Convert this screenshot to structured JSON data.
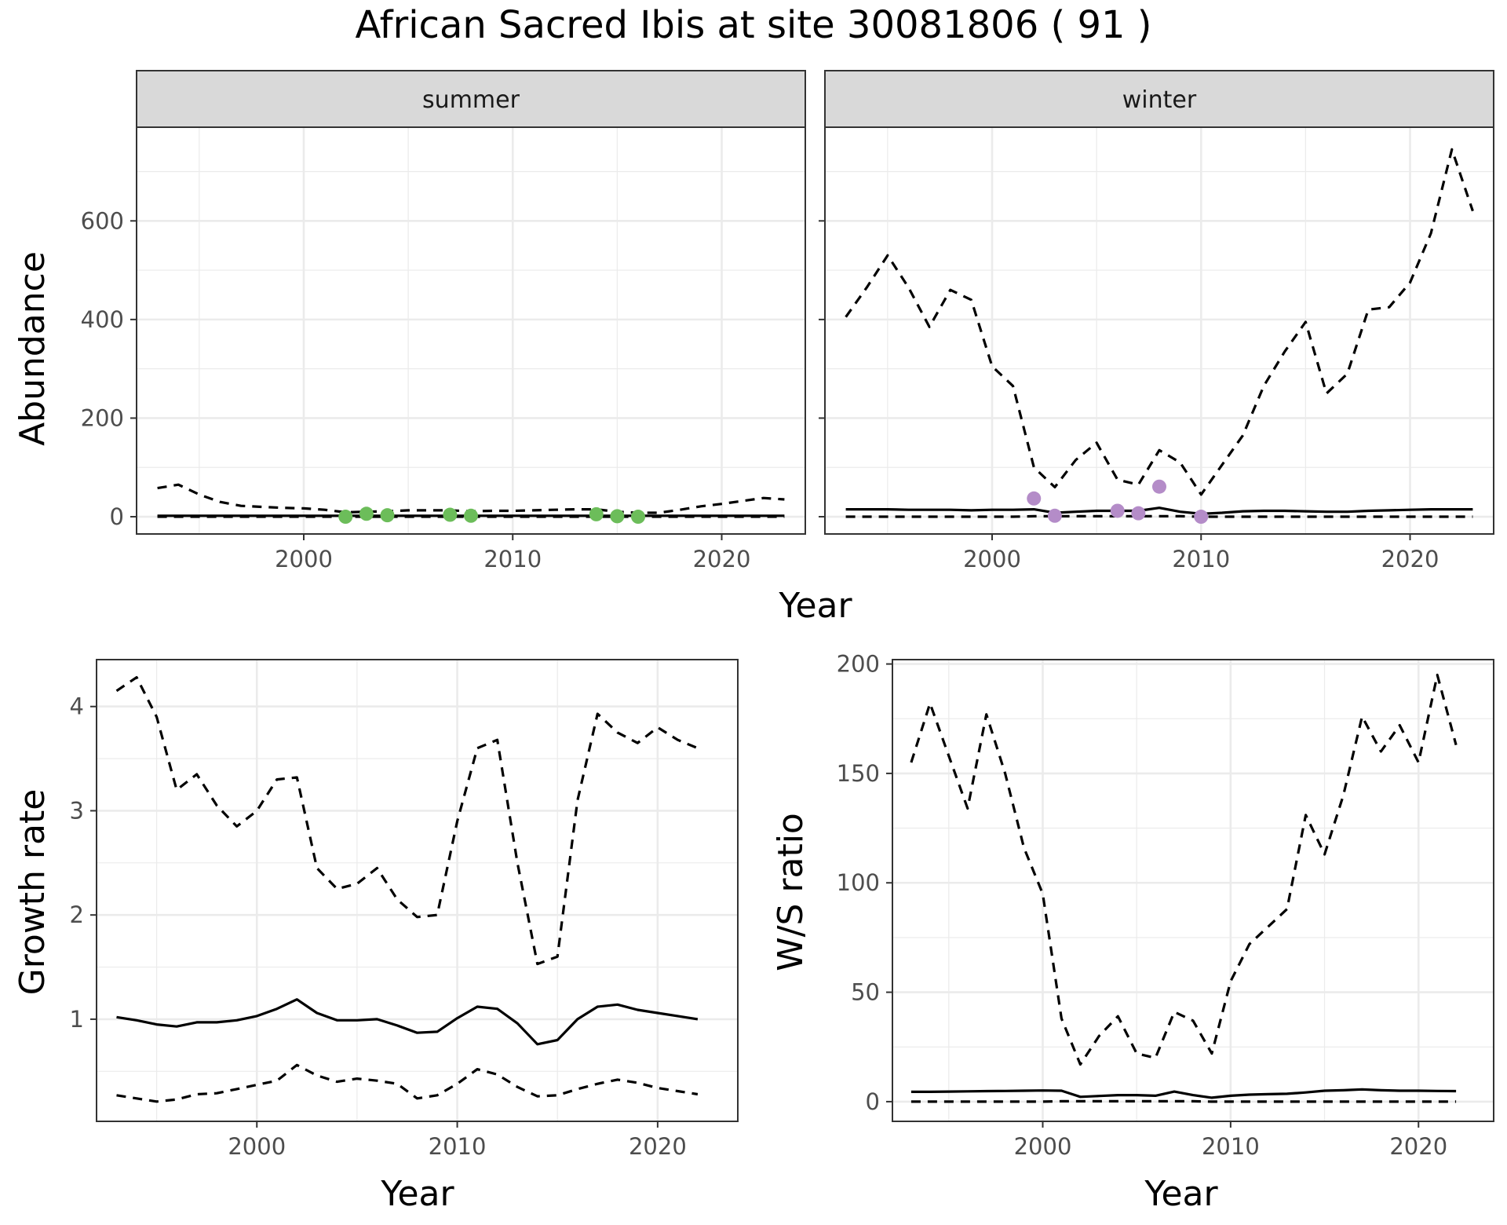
{
  "title": "African Sacred Ibis at site 30081806 ( 91 )",
  "colors": {
    "summer_points": "#6cbd5a",
    "winter_points": "#b48cc8",
    "line": "#000000",
    "strip_bg": "#d9d9d9",
    "grid": "#ebebeb"
  },
  "chart_data": [
    {
      "type": "line",
      "facet": "summer",
      "xlabel": "Year",
      "ylabel": "Abundance",
      "xlim": [
        1992,
        2024
      ],
      "ylim": [
        -35,
        790
      ],
      "xticks": [
        2000,
        2010,
        2020
      ],
      "yticks": [
        0,
        200,
        400,
        600
      ],
      "grid": true,
      "series": [
        {
          "style": "dashed",
          "x": [
            1993,
            1994,
            1995,
            1996,
            1997,
            1998,
            1999,
            2000,
            2001,
            2002,
            2003,
            2004,
            2005,
            2006,
            2007,
            2008,
            2009,
            2010,
            2011,
            2012,
            2013,
            2014,
            2015,
            2016,
            2017,
            2018,
            2019,
            2020,
            2021,
            2022,
            2023
          ],
          "values": [
            58,
            65,
            45,
            30,
            22,
            20,
            18,
            17,
            14,
            9,
            10,
            11,
            13,
            13,
            13,
            11,
            12,
            12,
            13,
            14,
            15,
            15,
            10,
            8,
            8,
            14,
            21,
            26,
            32,
            38,
            35
          ]
        },
        {
          "style": "solid",
          "x": [
            1993,
            1994,
            1995,
            1996,
            1997,
            1998,
            1999,
            2000,
            2001,
            2002,
            2003,
            2004,
            2005,
            2006,
            2007,
            2008,
            2009,
            2010,
            2011,
            2012,
            2013,
            2014,
            2015,
            2016,
            2017,
            2018,
            2019,
            2020,
            2021,
            2022,
            2023
          ],
          "values": [
            2,
            2,
            2,
            2,
            2,
            2,
            2,
            2,
            2,
            2,
            2,
            2,
            2,
            2,
            2,
            2,
            2,
            2,
            2,
            2,
            2,
            2,
            2,
            2,
            2,
            2,
            2,
            2,
            2,
            2,
            2
          ]
        },
        {
          "style": "dashed",
          "x": [
            1993,
            1994,
            1995,
            1996,
            1997,
            1998,
            1999,
            2000,
            2001,
            2002,
            2003,
            2004,
            2005,
            2006,
            2007,
            2008,
            2009,
            2010,
            2011,
            2012,
            2013,
            2014,
            2015,
            2016,
            2017,
            2018,
            2019,
            2020,
            2021,
            2022,
            2023
          ],
          "values": [
            0,
            0,
            0,
            0,
            0,
            0,
            0,
            0,
            0,
            0,
            0,
            0,
            0,
            0,
            0,
            0,
            0,
            0,
            0,
            0,
            0,
            0,
            0,
            0,
            0,
            0,
            0,
            0,
            0,
            0,
            0
          ]
        }
      ],
      "points": {
        "x": [
          2002,
          2003,
          2004,
          2007,
          2008,
          2014,
          2015,
          2016
        ],
        "values": [
          0,
          6,
          3,
          4,
          2,
          5,
          1,
          0
        ]
      }
    },
    {
      "type": "line",
      "facet": "winter",
      "xlabel": "Year",
      "ylabel": "Abundance",
      "xlim": [
        1992,
        2024
      ],
      "ylim": [
        -35,
        790
      ],
      "xticks": [
        2000,
        2010,
        2020
      ],
      "yticks": [
        0,
        200,
        400,
        600
      ],
      "grid": true,
      "series": [
        {
          "style": "dashed",
          "x": [
            1993,
            1994,
            1995,
            1996,
            1997,
            1998,
            1999,
            2000,
            2001,
            2002,
            2003,
            2004,
            2005,
            2006,
            2007,
            2008,
            2009,
            2010,
            2011,
            2012,
            2013,
            2014,
            2015,
            2016,
            2017,
            2018,
            2019,
            2020,
            2021,
            2022,
            2023
          ],
          "values": [
            405,
            465,
            530,
            465,
            385,
            460,
            440,
            305,
            265,
            100,
            60,
            115,
            150,
            75,
            65,
            135,
            110,
            45,
            105,
            165,
            265,
            335,
            395,
            250,
            290,
            420,
            425,
            475,
            575,
            745,
            620
          ]
        },
        {
          "style": "solid",
          "x": [
            1993,
            1994,
            1995,
            1996,
            1997,
            1998,
            1999,
            2000,
            2001,
            2002,
            2003,
            2004,
            2005,
            2006,
            2007,
            2008,
            2009,
            2010,
            2011,
            2012,
            2013,
            2014,
            2015,
            2016,
            2017,
            2018,
            2019,
            2020,
            2021,
            2022,
            2023
          ],
          "values": [
            15,
            15,
            15,
            14,
            14,
            14,
            13,
            14,
            14,
            15,
            8,
            10,
            12,
            12,
            12,
            18,
            10,
            6,
            8,
            11,
            12,
            12,
            11,
            10,
            10,
            12,
            13,
            14,
            15,
            15,
            15
          ]
        },
        {
          "style": "dashed",
          "x": [
            1993,
            1994,
            1995,
            1996,
            1997,
            1998,
            1999,
            2000,
            2001,
            2002,
            2003,
            2004,
            2005,
            2006,
            2007,
            2008,
            2009,
            2010,
            2011,
            2012,
            2013,
            2014,
            2015,
            2016,
            2017,
            2018,
            2019,
            2020,
            2021,
            2022,
            2023
          ],
          "values": [
            0,
            0,
            0,
            0,
            0,
            0,
            0,
            0,
            0,
            1,
            1,
            1,
            1,
            1,
            1,
            1,
            1,
            0,
            0,
            0,
            0,
            0,
            0,
            0,
            0,
            0,
            0,
            0,
            0,
            0,
            0
          ]
        }
      ],
      "points": {
        "x": [
          2002,
          2003,
          2006,
          2007,
          2008,
          2010
        ],
        "values": [
          37,
          2,
          12,
          7,
          61,
          0
        ]
      }
    },
    {
      "type": "line",
      "xlabel": "Year",
      "ylabel": "Growth rate",
      "xlim": [
        1992,
        2024
      ],
      "ylim": [
        0.02,
        4.45
      ],
      "xticks": [
        2000,
        2010,
        2020
      ],
      "yticks": [
        1,
        2,
        3,
        4
      ],
      "grid": true,
      "series": [
        {
          "style": "dashed",
          "x": [
            1993,
            1994,
            1995,
            1996,
            1997,
            1998,
            1999,
            2000,
            2001,
            2002,
            2003,
            2004,
            2005,
            2006,
            2007,
            2008,
            2009,
            2010,
            2011,
            2012,
            2013,
            2014,
            2015,
            2016,
            2017,
            2018,
            2019,
            2020,
            2021,
            2022
          ],
          "values": [
            4.15,
            4.28,
            3.9,
            3.2,
            3.35,
            3.05,
            2.85,
            3.0,
            3.3,
            3.32,
            2.45,
            2.25,
            2.3,
            2.45,
            2.15,
            1.98,
            2.0,
            2.9,
            3.6,
            3.68,
            2.5,
            1.53,
            1.6,
            3.1,
            3.93,
            3.75,
            3.65,
            3.8,
            3.68,
            3.6
          ]
        },
        {
          "style": "solid",
          "x": [
            1993,
            1994,
            1995,
            1996,
            1997,
            1998,
            1999,
            2000,
            2001,
            2002,
            2003,
            2004,
            2005,
            2006,
            2007,
            2008,
            2009,
            2010,
            2011,
            2012,
            2013,
            2014,
            2015,
            2016,
            2017,
            2018,
            2019,
            2020,
            2021,
            2022
          ],
          "values": [
            1.02,
            0.99,
            0.95,
            0.93,
            0.97,
            0.97,
            0.99,
            1.03,
            1.1,
            1.19,
            1.06,
            0.99,
            0.99,
            1.0,
            0.94,
            0.87,
            0.88,
            1.01,
            1.12,
            1.1,
            0.96,
            0.76,
            0.8,
            1.0,
            1.12,
            1.14,
            1.09,
            1.06,
            1.03,
            1.0
          ]
        },
        {
          "style": "dashed",
          "x": [
            1993,
            1994,
            1995,
            1996,
            1997,
            1998,
            1999,
            2000,
            2001,
            2002,
            2003,
            2004,
            2005,
            2006,
            2007,
            2008,
            2009,
            2010,
            2011,
            2012,
            2013,
            2014,
            2015,
            2016,
            2017,
            2018,
            2019,
            2020,
            2021,
            2022
          ],
          "values": [
            0.27,
            0.24,
            0.21,
            0.23,
            0.28,
            0.29,
            0.33,
            0.37,
            0.41,
            0.56,
            0.46,
            0.4,
            0.43,
            0.41,
            0.38,
            0.24,
            0.27,
            0.38,
            0.52,
            0.47,
            0.35,
            0.26,
            0.27,
            0.33,
            0.38,
            0.42,
            0.39,
            0.34,
            0.31,
            0.28
          ]
        }
      ]
    },
    {
      "type": "line",
      "xlabel": "Year",
      "ylabel": "W/S ratio",
      "xlim": [
        1992,
        2024
      ],
      "ylim": [
        -9,
        202
      ],
      "xticks": [
        2000,
        2010,
        2020
      ],
      "yticks": [
        0,
        50,
        100,
        150,
        200
      ],
      "grid": true,
      "series": [
        {
          "style": "dashed",
          "x": [
            1993,
            1994,
            1995,
            1996,
            1997,
            1998,
            1999,
            2000,
            2001,
            2002,
            2003,
            2004,
            2005,
            2006,
            2007,
            2008,
            2009,
            2010,
            2011,
            2012,
            2013,
            2014,
            2015,
            2016,
            2017,
            2018,
            2019,
            2020,
            2021,
            2022
          ],
          "values": [
            155,
            182,
            158,
            134,
            177,
            150,
            116,
            95,
            38,
            17,
            30,
            39,
            22,
            20,
            41,
            37,
            22,
            55,
            72,
            80,
            88,
            131,
            113,
            140,
            176,
            160,
            172,
            155,
            195,
            163
          ]
        },
        {
          "style": "solid",
          "x": [
            1993,
            1994,
            1995,
            1996,
            1997,
            1998,
            1999,
            2000,
            2001,
            2002,
            2003,
            2004,
            2005,
            2006,
            2007,
            2008,
            2009,
            2010,
            2011,
            2012,
            2013,
            2014,
            2015,
            2016,
            2017,
            2018,
            2019,
            2020,
            2021,
            2022
          ],
          "values": [
            4.5,
            4.5,
            4.6,
            4.7,
            4.8,
            4.9,
            5.0,
            5.1,
            5.0,
            2.2,
            2.6,
            3.0,
            3.0,
            2.7,
            4.6,
            3.0,
            1.8,
            2.7,
            3.2,
            3.4,
            3.6,
            4.2,
            5.0,
            5.2,
            5.6,
            5.2,
            5.0,
            5.0,
            4.9,
            4.8
          ]
        },
        {
          "style": "dashed",
          "x": [
            1993,
            1994,
            1995,
            1996,
            1997,
            1998,
            1999,
            2000,
            2001,
            2002,
            2003,
            2004,
            2005,
            2006,
            2007,
            2008,
            2009,
            2010,
            2011,
            2012,
            2013,
            2014,
            2015,
            2016,
            2017,
            2018,
            2019,
            2020,
            2021,
            2022
          ],
          "values": [
            0,
            0,
            0,
            0,
            0,
            0,
            0,
            0,
            0.2,
            0.2,
            0.2,
            0.2,
            0.2,
            0.2,
            0.2,
            0.2,
            0,
            0,
            0,
            0,
            0,
            0,
            0,
            0,
            0,
            0,
            0,
            0,
            0,
            0
          ]
        }
      ]
    }
  ],
  "labels": {
    "abundance_ylabel": "Abundance",
    "top_xlabel": "Year",
    "growth_ylabel": "Growth rate",
    "growth_xlabel": "Year",
    "ws_ylabel": "W/S ratio",
    "ws_xlabel": "Year",
    "facet_summer": "summer",
    "facet_winter": "winter"
  }
}
